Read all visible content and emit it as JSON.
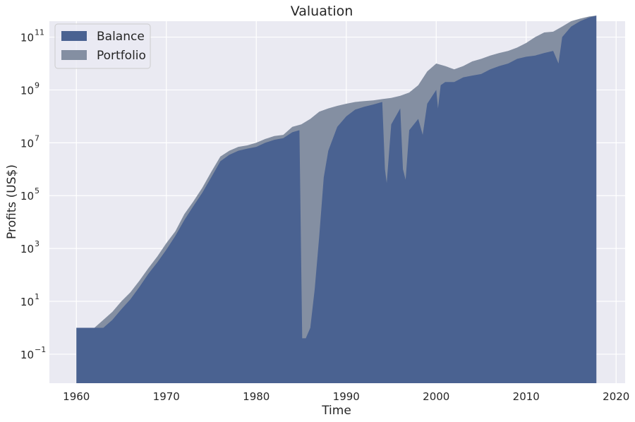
{
  "chart_data": {
    "type": "area",
    "title": "Valuation",
    "xlabel": "Time",
    "ylabel": "Profits (US$)",
    "yscale": "log",
    "xlim": [
      1957,
      2021
    ],
    "ylim": [
      0.008,
      400000000000
    ],
    "grid": true,
    "legend": "top-left",
    "x_ticks": [
      1960,
      1970,
      1980,
      1990,
      2000,
      2010,
      2020
    ],
    "y_ticks": [
      {
        "base": "10",
        "exp": "−1",
        "value": 0.1
      },
      {
        "base": "10",
        "exp": "1",
        "value": 10
      },
      {
        "base": "10",
        "exp": "3",
        "value": 1000
      },
      {
        "base": "10",
        "exp": "5",
        "value": 100000
      },
      {
        "base": "10",
        "exp": "7",
        "value": 10000000
      },
      {
        "base": "10",
        "exp": "9",
        "value": 1000000000
      },
      {
        "base": "10",
        "exp": "11",
        "value": 100000000000
      }
    ],
    "colors": {
      "background": "#eaeaf2",
      "grid": "#ffffff",
      "balance": "#4a6291",
      "portfolio": "#848fa2"
    },
    "series": [
      {
        "name": "Portfolio",
        "x": [
          1960.0,
          1962.0,
          1963.0,
          1964.0,
          1965.0,
          1966.0,
          1967.0,
          1968.0,
          1969.0,
          1970.0,
          1971.0,
          1972.0,
          1973.0,
          1974.0,
          1975.0,
          1976.0,
          1977.0,
          1978.0,
          1979.0,
          1980.0,
          1981.0,
          1982.0,
          1983.0,
          1984.0,
          1985.0,
          1986.0,
          1987.0,
          1988.0,
          1989.0,
          1990.0,
          1991.0,
          1992.0,
          1993.0,
          1994.0,
          1995.0,
          1996.0,
          1997.0,
          1998.0,
          1999.0,
          2000.0,
          2001.0,
          2002.0,
          2003.0,
          2004.0,
          2005.0,
          2006.0,
          2007.0,
          2008.0,
          2009.0,
          2010.0,
          2011.0,
          2012.0,
          2013.0,
          2014.0,
          2015.0,
          2016.0,
          2017.0,
          2017.8
        ],
        "y": [
          1.0,
          1.0,
          2.0,
          4.0,
          10.0,
          22.0,
          60.0,
          180.0,
          500.0,
          1600.0,
          4500.0,
          20000.0,
          60000.0,
          200000.0,
          800000.0,
          3000000.0,
          5000000.0,
          7000000.0,
          8000000.0,
          10000000.0,
          14000000.0,
          18000000.0,
          20000000.0,
          40000000.0,
          50000000.0,
          80000000.0,
          150000000.0,
          200000000.0,
          250000000.0,
          300000000.0,
          350000000.0,
          380000000.0,
          400000000.0,
          450000000.0,
          500000000.0,
          600000000.0,
          800000000.0,
          1500000000.0,
          5000000000.0,
          10000000000.0,
          8000000000.0,
          6000000000.0,
          8000000000.0,
          12000000000.0,
          15000000000.0,
          20000000000.0,
          25000000000.0,
          30000000000.0,
          40000000000.0,
          60000000000.0,
          100000000000.0,
          150000000000.0,
          160000000000.0,
          250000000000.0,
          400000000000.0,
          500000000000.0,
          600000000000.0,
          650000000000.0
        ]
      },
      {
        "name": "Balance",
        "x": [
          1960.0,
          1962.0,
          1963.0,
          1964.0,
          1965.0,
          1966.0,
          1967.0,
          1968.0,
          1969.0,
          1970.0,
          1971.0,
          1972.0,
          1973.0,
          1974.0,
          1975.0,
          1976.0,
          1977.0,
          1978.0,
          1979.0,
          1980.0,
          1981.0,
          1982.0,
          1983.0,
          1984.0,
          1984.8,
          1985.1,
          1985.5,
          1986.0,
          1986.5,
          1987.0,
          1987.5,
          1988.0,
          1989.0,
          1990.0,
          1991.0,
          1992.0,
          1993.0,
          1994.0,
          1994.3,
          1994.5,
          1995.0,
          1996.0,
          1996.3,
          1996.6,
          1997.0,
          1998.0,
          1998.5,
          1999.0,
          2000.0,
          2000.2,
          2000.5,
          2001.0,
          2002.0,
          2003.0,
          2004.0,
          2005.0,
          2006.0,
          2007.0,
          2008.0,
          2009.0,
          2010.0,
          2011.0,
          2012.0,
          2013.0,
          2013.6,
          2014.0,
          2015.0,
          2016.0,
          2017.0,
          2017.8
        ],
        "y": [
          1.0,
          1.0,
          1.0,
          2.0,
          5.0,
          12.0,
          35.0,
          110.0,
          300.0,
          900.0,
          3000.0,
          12000.0,
          40000.0,
          130000.0,
          500000.0,
          2000000.0,
          3500000.0,
          5000000.0,
          6000000.0,
          7000000.0,
          10000000.0,
          13000000.0,
          15000000.0,
          25000000.0,
          30000000.0,
          0.4,
          0.4,
          1.0,
          30.0,
          3000.0,
          500000.0,
          5000000.0,
          40000000.0,
          100000000.0,
          180000000.0,
          230000000.0,
          280000000.0,
          350000000.0,
          1000000.0,
          300000.0,
          50000000.0,
          200000000.0,
          1000000.0,
          400000.0,
          30000000.0,
          80000000.0,
          20000000.0,
          300000000.0,
          1000000000.0,
          200000000.0,
          1500000000.0,
          2000000000.0,
          2000000000.0,
          3000000000.0,
          3500000000.0,
          4000000000.0,
          6000000000.0,
          8000000000.0,
          10000000000.0,
          15000000000.0,
          18000000000.0,
          20000000000.0,
          25000000000.0,
          30000000000.0,
          10000000000.0,
          100000000000.0,
          250000000000.0,
          400000000000.0,
          550000000000.0,
          650000000000.0
        ]
      }
    ]
  }
}
